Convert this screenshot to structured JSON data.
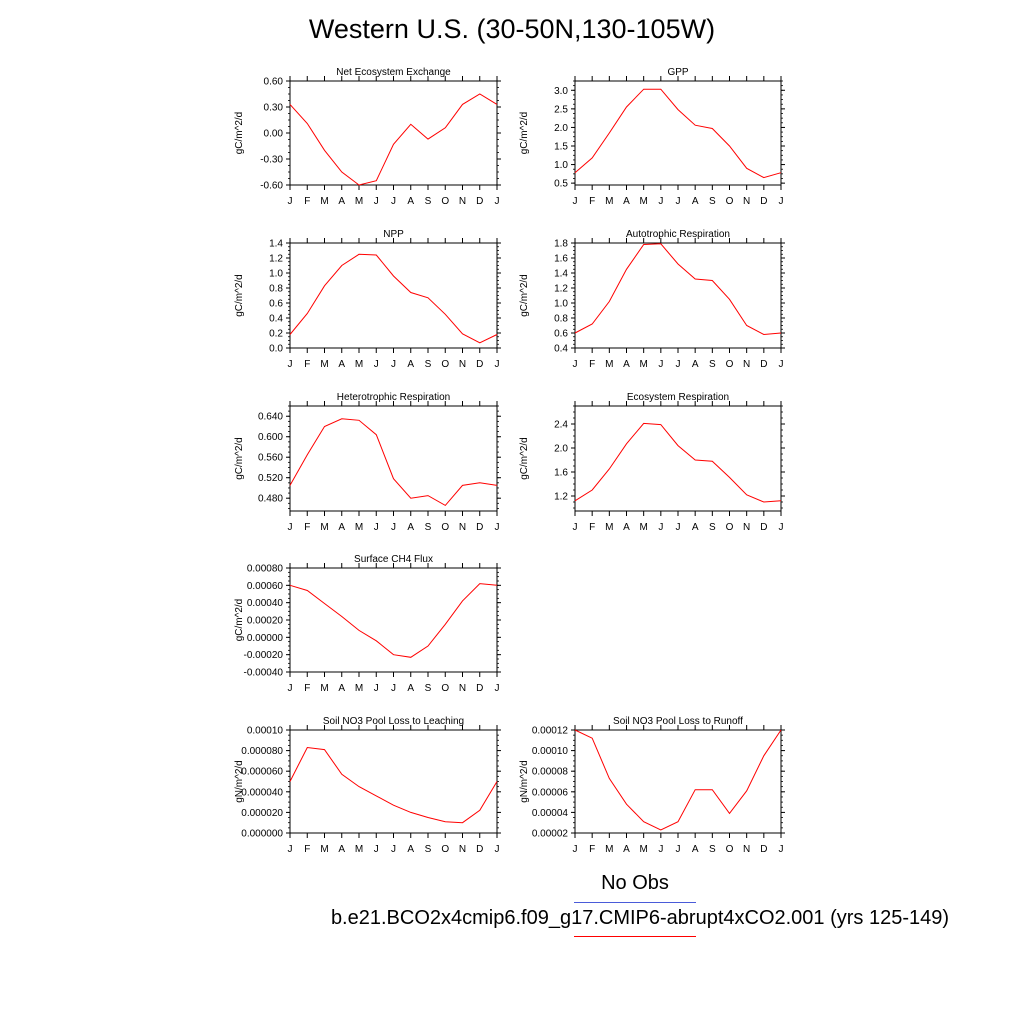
{
  "page": {
    "title": "Western U.S. (30-50N,130-105W)"
  },
  "legend": {
    "noobs_label": "No Obs",
    "noobs_color": "#4a5bd9",
    "case_label": "b.e21.BCO2x4cmip6.f09_g17.CMIP6-abrupt4xCO2.001 (yrs 125-149)",
    "case_color": "#ff0000"
  },
  "chart_data": [
    {
      "type": "line",
      "title": "Net Ecosystem Exchange",
      "ylabel": "gC/m^2/d",
      "categories": [
        "J",
        "F",
        "M",
        "A",
        "M",
        "J",
        "J",
        "A",
        "S",
        "O",
        "N",
        "D",
        "J"
      ],
      "values": [
        0.33,
        0.11,
        -0.2,
        -0.45,
        -0.6,
        -0.55,
        -0.13,
        0.1,
        -0.07,
        0.06,
        0.33,
        0.45,
        0.33
      ],
      "ylim": [
        -0.6,
        0.6
      ],
      "yticks": [
        -0.6,
        -0.3,
        0.0,
        0.3,
        0.6
      ],
      "yticklabels": [
        "-0.60",
        "-0.30",
        "0.00",
        "0.30",
        "0.60"
      ],
      "color": "#ff0000"
    },
    {
      "type": "line",
      "title": "GPP",
      "ylabel": "gC/m^2/d",
      "categories": [
        "J",
        "F",
        "M",
        "A",
        "M",
        "J",
        "J",
        "A",
        "S",
        "O",
        "N",
        "D",
        "J"
      ],
      "values": [
        0.78,
        1.18,
        1.85,
        2.55,
        3.03,
        3.03,
        2.48,
        2.06,
        1.97,
        1.5,
        0.9,
        0.65,
        0.78
      ],
      "ylim": [
        0.45,
        3.25
      ],
      "yticks": [
        0.5,
        1.0,
        1.5,
        2.0,
        2.5,
        3.0
      ],
      "yticklabels": [
        "0.5",
        "1.0",
        "1.5",
        "2.0",
        "2.5",
        "3.0"
      ],
      "color": "#ff0000"
    },
    {
      "type": "line",
      "title": "NPP",
      "ylabel": "gC/m^2/d",
      "categories": [
        "J",
        "F",
        "M",
        "A",
        "M",
        "J",
        "J",
        "A",
        "S",
        "O",
        "N",
        "D",
        "J"
      ],
      "values": [
        0.18,
        0.46,
        0.83,
        1.1,
        1.25,
        1.24,
        0.96,
        0.74,
        0.67,
        0.45,
        0.19,
        0.07,
        0.18
      ],
      "ylim": [
        0.0,
        1.4
      ],
      "yticks": [
        0.0,
        0.2,
        0.4,
        0.6,
        0.8,
        1.0,
        1.2,
        1.4
      ],
      "yticklabels": [
        "0.0",
        "0.2",
        "0.4",
        "0.6",
        "0.8",
        "1.0",
        "1.2",
        "1.4"
      ],
      "color": "#ff0000"
    },
    {
      "type": "line",
      "title": "Autotrophic Respiration",
      "ylabel": "gC/m^2/d",
      "categories": [
        "J",
        "F",
        "M",
        "A",
        "M",
        "J",
        "J",
        "A",
        "S",
        "O",
        "N",
        "D",
        "J"
      ],
      "values": [
        0.6,
        0.72,
        1.02,
        1.45,
        1.78,
        1.79,
        1.52,
        1.32,
        1.3,
        1.05,
        0.7,
        0.58,
        0.6
      ],
      "ylim": [
        0.4,
        1.8
      ],
      "yticks": [
        0.4,
        0.6,
        0.8,
        1.0,
        1.2,
        1.4,
        1.6,
        1.8
      ],
      "yticklabels": [
        "0.4",
        "0.6",
        "0.8",
        "1.0",
        "1.2",
        "1.4",
        "1.6",
        "1.8"
      ],
      "color": "#ff0000"
    },
    {
      "type": "line",
      "title": "Heterotrophic Respiration",
      "ylabel": "gC/m^2/d",
      "categories": [
        "J",
        "F",
        "M",
        "A",
        "M",
        "J",
        "J",
        "A",
        "S",
        "O",
        "N",
        "D",
        "J"
      ],
      "values": [
        0.505,
        0.565,
        0.62,
        0.635,
        0.632,
        0.604,
        0.518,
        0.48,
        0.485,
        0.466,
        0.505,
        0.51,
        0.505
      ],
      "ylim": [
        0.455,
        0.66
      ],
      "yticks": [
        0.48,
        0.52,
        0.56,
        0.6,
        0.64
      ],
      "yticklabels": [
        "0.480",
        "0.520",
        "0.560",
        "0.600",
        "0.640"
      ],
      "color": "#ff0000"
    },
    {
      "type": "line",
      "title": "Ecosystem Respiration",
      "ylabel": "gC/m^2/d",
      "categories": [
        "J",
        "F",
        "M",
        "A",
        "M",
        "J",
        "J",
        "A",
        "S",
        "O",
        "N",
        "D",
        "J"
      ],
      "values": [
        1.12,
        1.3,
        1.65,
        2.07,
        2.41,
        2.39,
        2.04,
        1.8,
        1.78,
        1.51,
        1.22,
        1.1,
        1.12
      ],
      "ylim": [
        0.95,
        2.7
      ],
      "yticks": [
        1.2,
        1.6,
        2.0,
        2.4
      ],
      "yticklabels": [
        "1.2",
        "1.6",
        "2.0",
        "2.4"
      ],
      "color": "#ff0000"
    },
    {
      "type": "line",
      "title": "Surface CH4 Flux",
      "ylabel": "gC/m^2/d",
      "categories": [
        "J",
        "F",
        "M",
        "A",
        "M",
        "J",
        "J",
        "A",
        "S",
        "O",
        "N",
        "D",
        "J"
      ],
      "values": [
        0.0006,
        0.00054,
        0.00039,
        0.00024,
        8e-05,
        -4e-05,
        -0.0002,
        -0.00023,
        -0.0001,
        0.00015,
        0.00042,
        0.00062,
        0.0006
      ],
      "ylim": [
        -0.0004,
        0.0008
      ],
      "yticks": [
        -0.0004,
        -0.0002,
        0.0,
        0.0002,
        0.0004,
        0.0006,
        0.0008
      ],
      "yticklabels": [
        "-0.00040",
        "-0.00020",
        "0.00000",
        "0.00020",
        "0.00040",
        "0.00060",
        "0.00080"
      ],
      "color": "#ff0000"
    },
    {
      "type": "line",
      "title": "Soil NO3 Pool Loss to Leaching",
      "ylabel": "gN/m^2/d",
      "categories": [
        "J",
        "F",
        "M",
        "A",
        "M",
        "J",
        "J",
        "A",
        "S",
        "O",
        "N",
        "D",
        "J"
      ],
      "values": [
        5e-05,
        8.3e-05,
        8.1e-05,
        5.7e-05,
        4.5e-05,
        3.6e-05,
        2.7e-05,
        2e-05,
        1.5e-05,
        1.1e-05,
        1e-05,
        2.2e-05,
        5e-05
      ],
      "ylim": [
        0.0,
        0.0001
      ],
      "yticks": [
        0.0,
        2e-05,
        4e-05,
        6e-05,
        8e-05,
        0.0001
      ],
      "yticklabels": [
        "0.000000",
        "0.000020",
        "0.000040",
        "0.000060",
        "0.000080",
        "0.00010"
      ],
      "color": "#ff0000"
    },
    {
      "type": "line",
      "title": "Soil NO3 Pool Loss to Runoff",
      "ylabel": "gN/m^2/d",
      "categories": [
        "J",
        "F",
        "M",
        "A",
        "M",
        "J",
        "J",
        "A",
        "S",
        "O",
        "N",
        "D",
        "J"
      ],
      "values": [
        0.00012,
        0.000112,
        7.3e-05,
        4.8e-05,
        3.1e-05,
        2.3e-05,
        3.1e-05,
        6.2e-05,
        6.2e-05,
        3.9e-05,
        6.1e-05,
        9.5e-05,
        0.00012
      ],
      "ylim": [
        2e-05,
        0.00012
      ],
      "yticks": [
        2e-05,
        4e-05,
        6e-05,
        8e-05,
        0.0001,
        0.00012
      ],
      "yticklabels": [
        "0.00002",
        "0.00004",
        "0.00006",
        "0.00008",
        "0.00010",
        "0.00012"
      ],
      "color": "#ff0000"
    }
  ]
}
